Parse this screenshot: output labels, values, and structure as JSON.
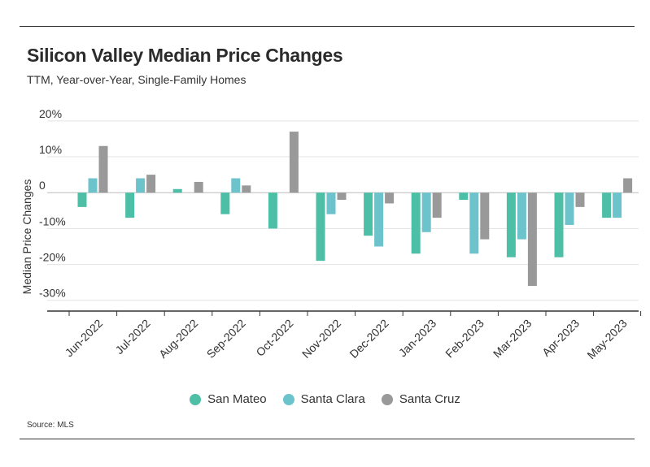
{
  "header": {
    "title": "Silicon Valley Median Price Changes",
    "subtitle": "TTM, Year-over-Year, Single-Family Homes"
  },
  "footer": {
    "source": "Source: MLS"
  },
  "chart_data": {
    "type": "bar",
    "title": "Silicon Valley Median Price Changes",
    "subtitle": "TTM, Year-over-Year, Single-Family Homes",
    "xlabel": "",
    "ylabel": "Median Price Changes",
    "ylim": [
      -33,
      22
    ],
    "yticks": [
      20,
      10,
      0,
      -10,
      -20,
      -30
    ],
    "ytick_labels": [
      "20%",
      "10%",
      "0",
      "-10%",
      "-20%",
      "-30%"
    ],
    "grid": true,
    "legend_position": "bottom",
    "categories": [
      "Jun-2022",
      "Jul-2022",
      "Aug-2022",
      "Sep-2022",
      "Oct-2022",
      "Nov-2022",
      "Dec-2022",
      "Jan-2023",
      "Feb-2023",
      "Mar-2023",
      "Apr-2023",
      "May-2023"
    ],
    "series": [
      {
        "name": "San Mateo",
        "color": "#4cbfa6",
        "values": [
          -4,
          -7,
          1,
          -6,
          -10,
          -19,
          -12,
          -17,
          -2,
          -18,
          -18,
          -7
        ]
      },
      {
        "name": "Santa Clara",
        "color": "#6cc3cc",
        "values": [
          4,
          4,
          0,
          4,
          0,
          -6,
          -15,
          -11,
          -17,
          -13,
          -9,
          -7
        ]
      },
      {
        "name": "Santa Cruz",
        "color": "#999999",
        "values": [
          13,
          5,
          3,
          2,
          17,
          -2,
          -3,
          -7,
          -13,
          -26,
          -4,
          4
        ]
      }
    ]
  }
}
